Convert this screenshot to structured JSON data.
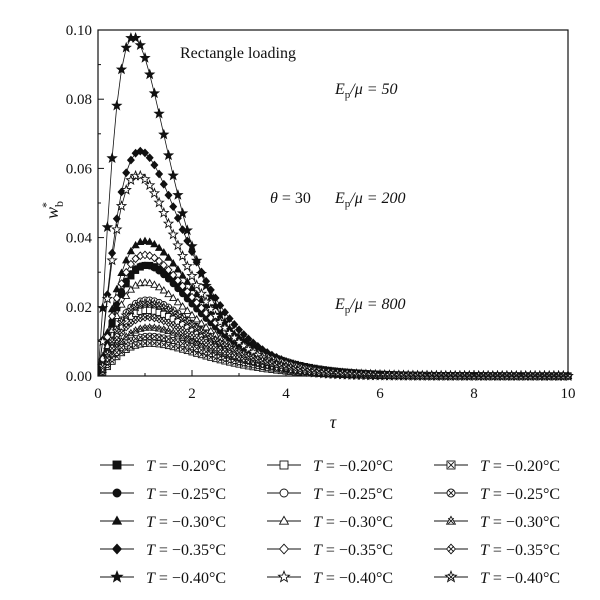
{
  "chart_data": {
    "type": "line",
    "xlabel": "τ",
    "ylabel": {
      "base": "w",
      "sup": "*",
      "sub": "b"
    },
    "xlim": [
      0,
      10
    ],
    "ylim": [
      0,
      0.1
    ],
    "xticks": [
      0,
      2,
      4,
      6,
      8,
      10
    ],
    "xtick_labels": [
      "0",
      "2",
      "4",
      "6",
      "8",
      "10"
    ],
    "yticks": [
      0,
      0.02,
      0.04,
      0.06,
      0.08,
      0.1
    ],
    "ytick_labels": [
      "0.00",
      "0.02",
      "0.04",
      "0.06",
      "0.08",
      "0.10"
    ],
    "grid": false,
    "legend_position": "bottom",
    "annotations": [
      {
        "id": "title",
        "text": "Rectangle loading"
      },
      {
        "id": "ep50",
        "text": "Ep/μ = 50",
        "parts": [
          "E",
          "p",
          "/μ = 50"
        ]
      },
      {
        "id": "theta",
        "text": "θ = 30",
        "parts": [
          "θ",
          " = 30"
        ]
      },
      {
        "id": "ep200",
        "text": "Ep/μ = 200",
        "parts": [
          "E",
          "p",
          "/μ = 200"
        ]
      },
      {
        "id": "ep800",
        "text": "Ep/μ = 800",
        "parts": [
          "E",
          "p",
          "/μ = 800"
        ]
      }
    ],
    "series": [
      {
        "name": "T = −0.20°C",
        "group": "Ep/μ = 50",
        "marker": "square-filled",
        "peak_x": 1.05,
        "peak_y": 0.032,
        "rise": 0.32
      },
      {
        "name": "T = −0.25°C",
        "group": "Ep/μ = 50",
        "marker": "circle-filled",
        "peak_x": 1.0,
        "peak_y": 0.032,
        "rise": 0.3
      },
      {
        "name": "T = −0.30°C",
        "group": "Ep/μ = 50",
        "marker": "triangle-filled",
        "peak_x": 1.0,
        "peak_y": 0.039,
        "rise": 0.3
      },
      {
        "name": "T = −0.35°C",
        "group": "Ep/μ = 50",
        "marker": "diamond-filled",
        "peak_x": 0.9,
        "peak_y": 0.065,
        "rise": 0.27
      },
      {
        "name": "T = −0.40°C",
        "group": "Ep/μ = 50",
        "marker": "star-filled",
        "peak_x": 0.75,
        "peak_y": 0.098,
        "rise": 0.22
      },
      {
        "name": "T = −0.20°C",
        "group": "Ep/μ = 200",
        "marker": "square-open",
        "peak_x": 1.05,
        "peak_y": 0.019,
        "rise": 0.33
      },
      {
        "name": "T = −0.25°C",
        "group": "Ep/μ = 200",
        "marker": "circle-open",
        "peak_x": 1.05,
        "peak_y": 0.022,
        "rise": 0.32
      },
      {
        "name": "T = −0.30°C",
        "group": "Ep/μ = 200",
        "marker": "triangle-open",
        "peak_x": 1.0,
        "peak_y": 0.027,
        "rise": 0.31
      },
      {
        "name": "T = −0.35°C",
        "group": "Ep/μ = 200",
        "marker": "diamond-open",
        "peak_x": 1.0,
        "peak_y": 0.035,
        "rise": 0.3
      },
      {
        "name": "T = −0.40°C",
        "group": "Ep/μ = 200",
        "marker": "star-open",
        "peak_x": 0.85,
        "peak_y": 0.058,
        "rise": 0.26
      },
      {
        "name": "T = −0.20°C",
        "group": "Ep/μ = 800",
        "marker": "square-cross",
        "peak_x": 1.1,
        "peak_y": 0.0095,
        "rise": 0.34
      },
      {
        "name": "T = −0.25°C",
        "group": "Ep/μ = 800",
        "marker": "circle-cross",
        "peak_x": 1.1,
        "peak_y": 0.0115,
        "rise": 0.34
      },
      {
        "name": "T = −0.30°C",
        "group": "Ep/μ = 800",
        "marker": "triangle-cross",
        "peak_x": 1.1,
        "peak_y": 0.014,
        "rise": 0.33
      },
      {
        "name": "T = −0.35°C",
        "group": "Ep/μ = 800",
        "marker": "diamond-cross",
        "peak_x": 1.05,
        "peak_y": 0.017,
        "rise": 0.33
      },
      {
        "name": "T = −0.40°C",
        "group": "Ep/μ = 800",
        "marker": "star-cross",
        "peak_x": 1.05,
        "peak_y": 0.021,
        "rise": 0.32
      }
    ]
  }
}
